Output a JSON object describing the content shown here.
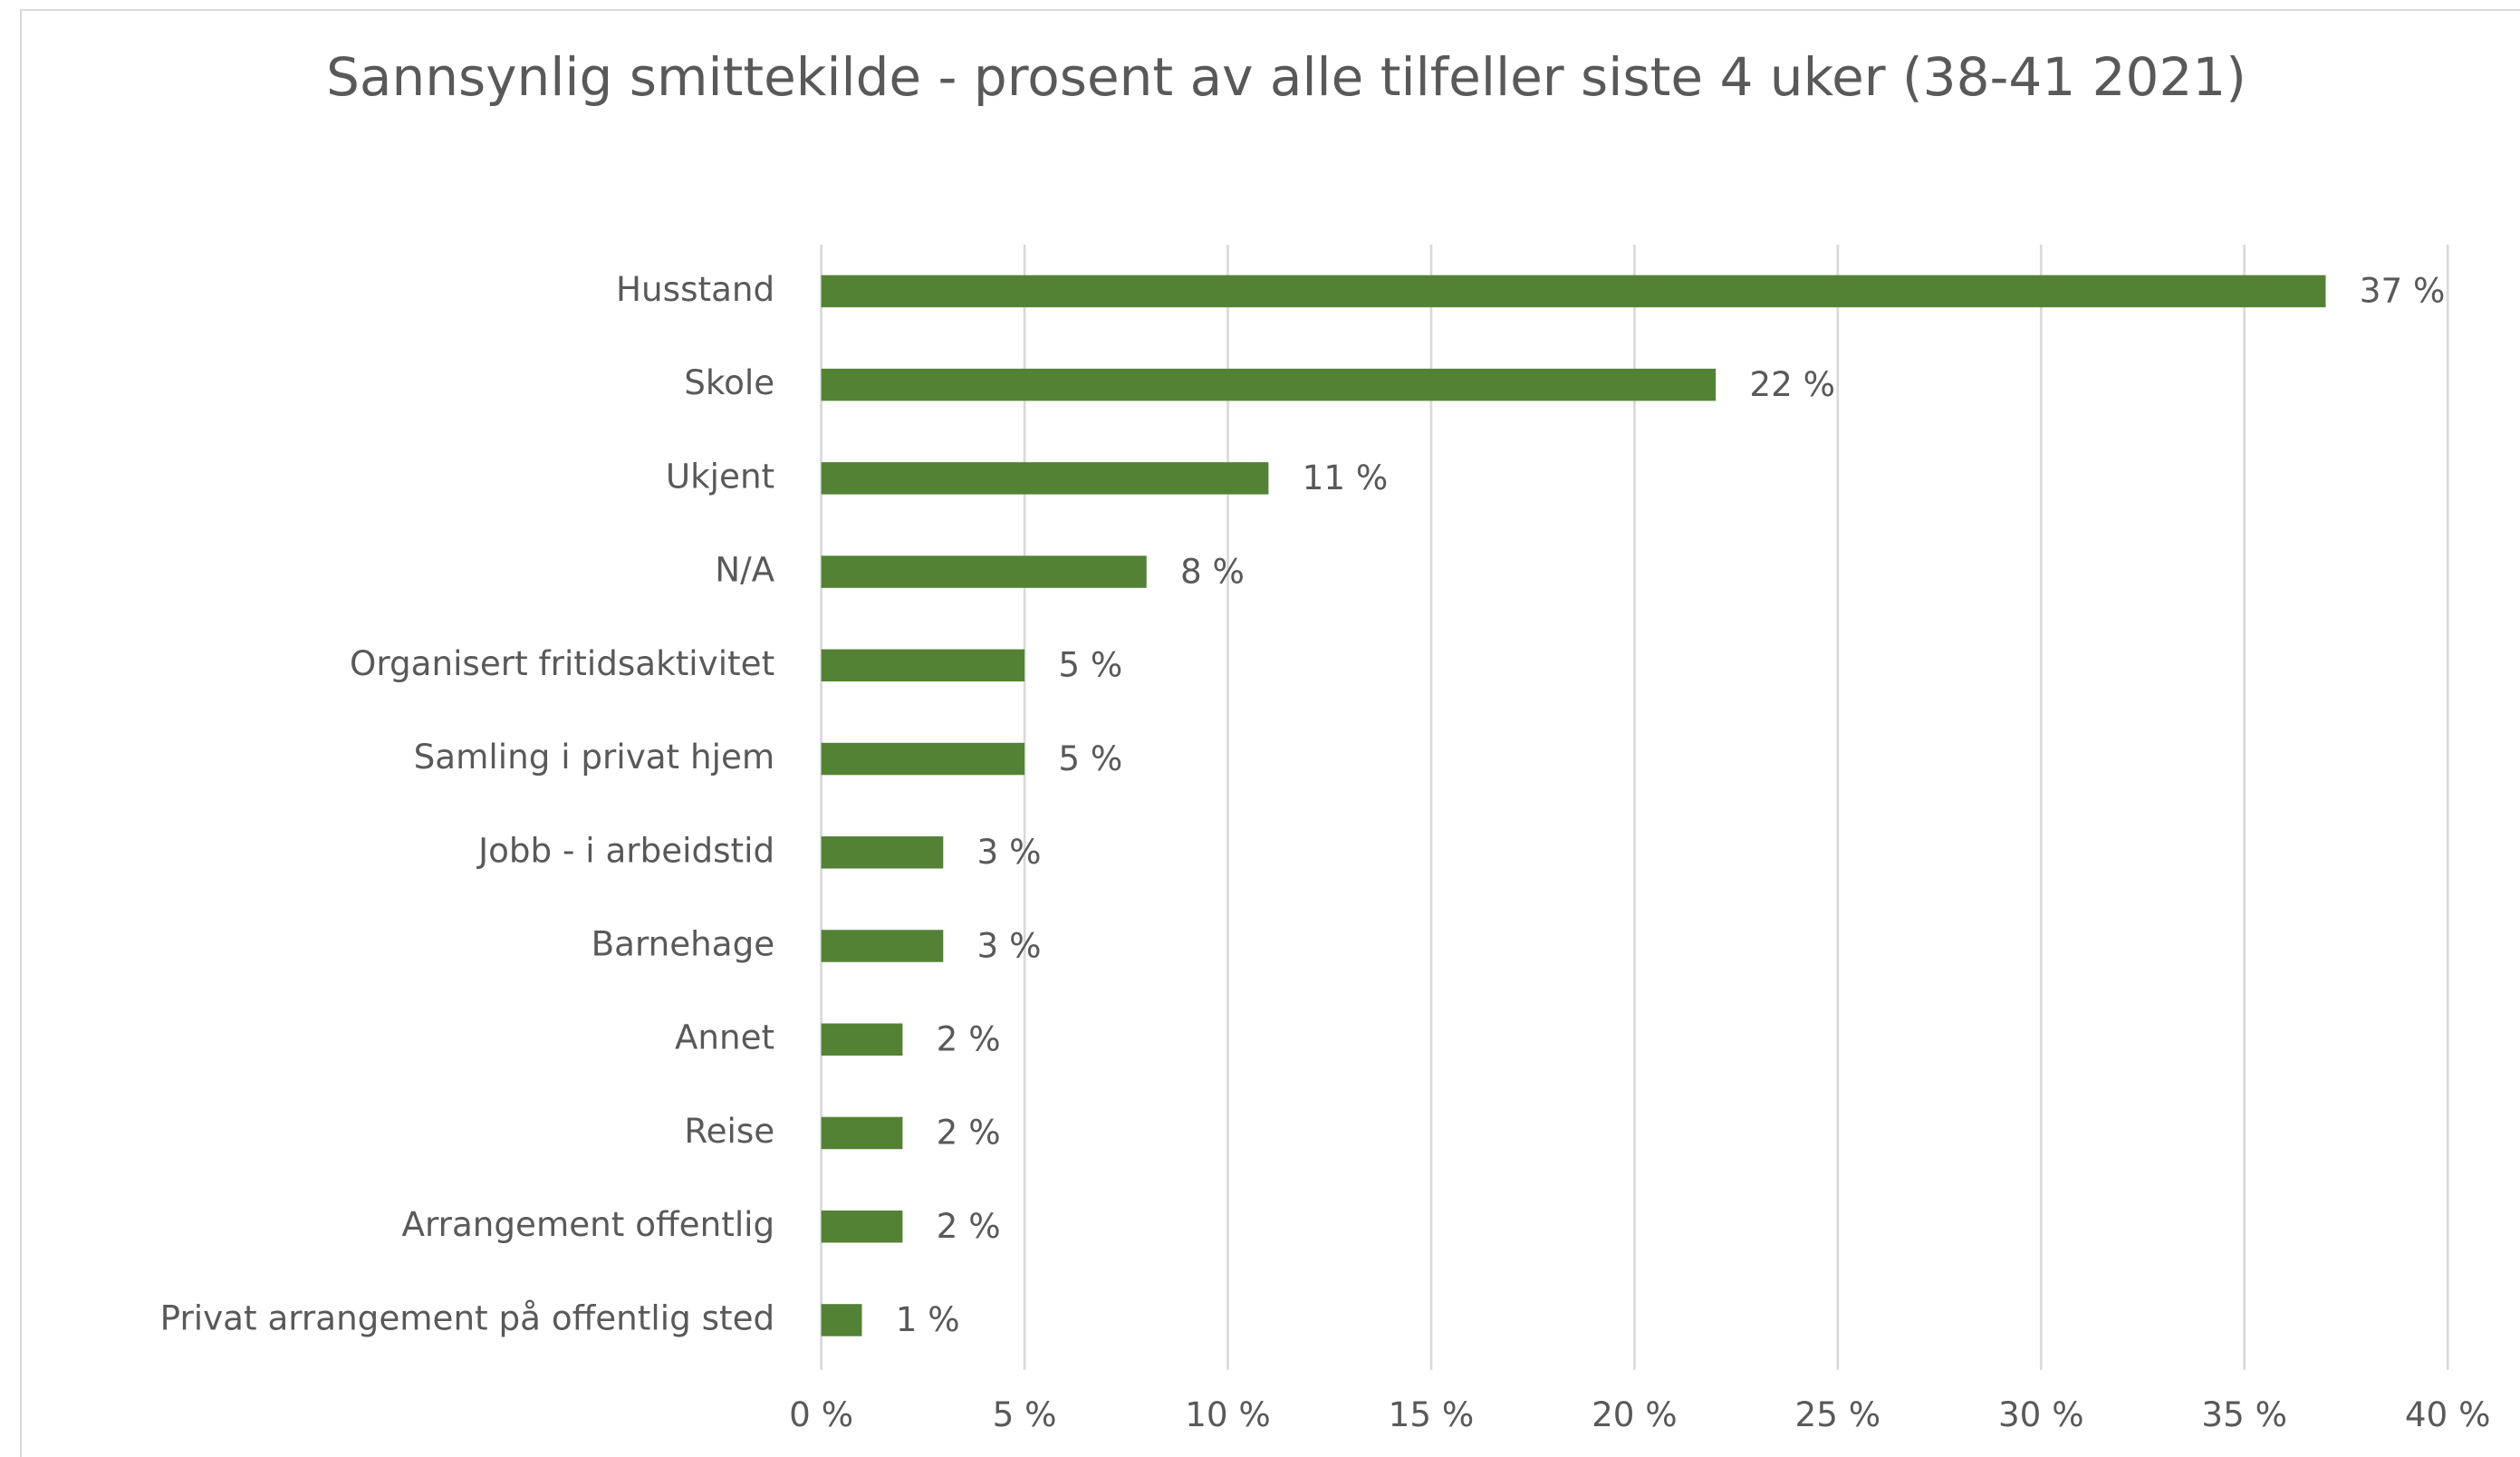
{
  "chart_data": {
    "type": "bar",
    "orientation": "horizontal",
    "title": "Sannsynlig smittekilde - prosent av alle tilfeller siste 4 uker (38-41 2021)",
    "categories": [
      "Husstand",
      "Skole",
      "Ukjent",
      "N/A",
      "Organisert fritidsaktivitet",
      "Samling i privat hjem",
      "Jobb - i arbeidstid",
      "Barnehage",
      "Annet",
      "Reise",
      "Arrangement offentlig",
      "Privat arrangement på offentlig sted"
    ],
    "values": [
      37,
      22,
      11,
      8,
      5,
      5,
      3,
      3,
      2,
      2,
      2,
      1
    ],
    "value_labels": [
      "37 %",
      "22 %",
      "11 %",
      "8 %",
      "5 %",
      "5 %",
      "3 %",
      "3 %",
      "2 %",
      "2 %",
      "2 %",
      "1 %"
    ],
    "color": "#548235",
    "xlim": [
      0,
      40
    ],
    "xticks": [
      {
        "value": 0,
        "label": "0 %"
      },
      {
        "value": 5,
        "label": "5 %"
      },
      {
        "value": 10,
        "label": "10 %"
      },
      {
        "value": 15,
        "label": "15 %"
      },
      {
        "value": 20,
        "label": "20 %"
      },
      {
        "value": 25,
        "label": "25 %"
      },
      {
        "value": 30,
        "label": "30 %"
      },
      {
        "value": 35,
        "label": "35 %"
      },
      {
        "value": 40,
        "label": "40 %"
      }
    ],
    "grid": true
  }
}
